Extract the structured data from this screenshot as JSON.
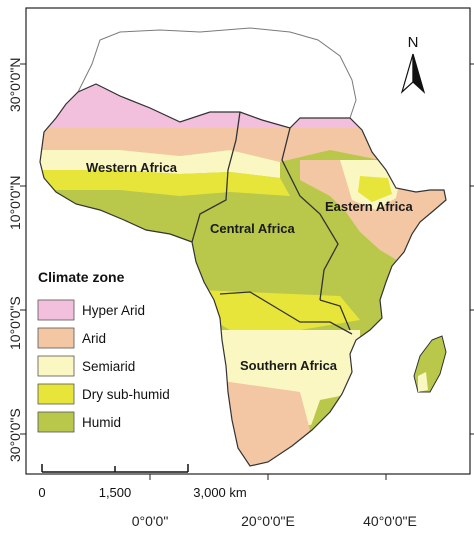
{
  "map": {
    "north_label": "N",
    "lat_labels": [
      "30°0'0\"N",
      "10°0'0\"N",
      "10°0'0\"S",
      "30°0'0\"S"
    ],
    "lon_labels": [
      "0°0'0\"",
      "20°0'0\"E",
      "40°0'0\"E"
    ],
    "regions": [
      {
        "name": "Western Africa"
      },
      {
        "name": "Central Africa"
      },
      {
        "name": "Eastern Africa"
      },
      {
        "name": "Southern Africa"
      }
    ],
    "legend": {
      "title": "Climate zone",
      "items": [
        {
          "label": "Hyper Arid",
          "color": "#f2c0dc"
        },
        {
          "label": "Arid",
          "color": "#f3c7a4"
        },
        {
          "label": "Semiarid",
          "color": "#fbf7c2"
        },
        {
          "label": "Dry sub-humid",
          "color": "#e8e53a"
        },
        {
          "label": "Humid",
          "color": "#b9c74a"
        }
      ]
    },
    "scale_bar": {
      "ticks": [
        "0",
        "1,500",
        "3,000 km"
      ]
    },
    "colors": {
      "outline": "#333333",
      "unstudied_land_outline": "#7a7a7a"
    }
  }
}
